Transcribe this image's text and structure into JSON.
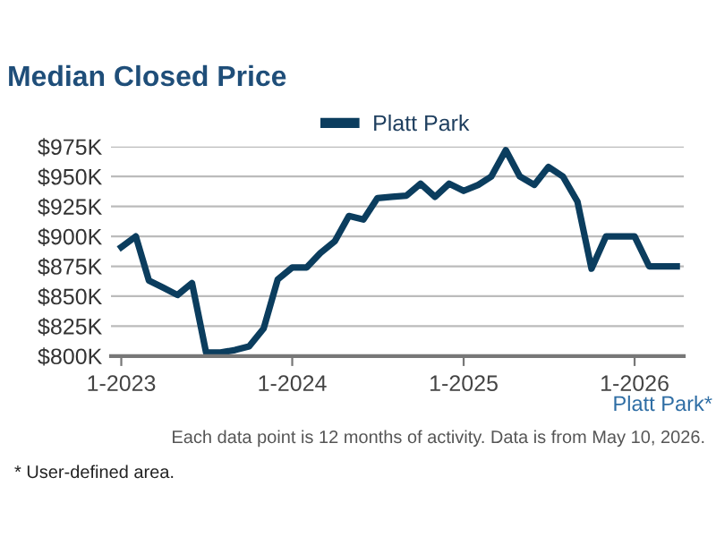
{
  "chart_data": {
    "type": "line",
    "title": "Median Closed Price",
    "x": [
      "2023-01",
      "2023-02",
      "2023-03",
      "2023-04",
      "2023-05",
      "2023-06",
      "2023-07",
      "2023-08",
      "2023-09",
      "2023-10",
      "2023-11",
      "2023-12",
      "2024-01",
      "2024-02",
      "2024-03",
      "2024-04",
      "2024-05",
      "2024-06",
      "2024-07",
      "2024-08",
      "2024-09",
      "2024-10",
      "2024-11",
      "2024-12",
      "2025-01",
      "2025-02",
      "2025-03",
      "2025-04",
      "2025-05",
      "2025-06",
      "2025-07",
      "2025-08",
      "2025-09",
      "2025-10",
      "2025-11",
      "2025-12",
      "2026-01",
      "2026-02",
      "2026-03",
      "2026-04"
    ],
    "series": [
      {
        "name": "Platt Park",
        "color": "#0b3d5e",
        "values": [
          891,
          900,
          863,
          857,
          851,
          861,
          803,
          803,
          805,
          808,
          823,
          864,
          874,
          874,
          886,
          896,
          917,
          914,
          932,
          933,
          934,
          944,
          933,
          944,
          938,
          943,
          950,
          972,
          950,
          943,
          958,
          950,
          929,
          873,
          900,
          900,
          900,
          875,
          875,
          875
        ]
      }
    ],
    "xlim": [
      "2022-12-10",
      "2026-04-16"
    ],
    "xticks": [
      {
        "value": "2023-01",
        "label": "1-2023"
      },
      {
        "value": "2024-01",
        "label": "1-2024"
      },
      {
        "value": "2025-01",
        "label": "1-2025"
      },
      {
        "value": "2026-01",
        "label": "1-2026"
      }
    ],
    "ylim": [
      800,
      975
    ],
    "yticks": [
      {
        "value": 800,
        "label": "$800K"
      },
      {
        "value": 825,
        "label": "$825K"
      },
      {
        "value": 850,
        "label": "$850K"
      },
      {
        "value": 875,
        "label": "$875K"
      },
      {
        "value": 900,
        "label": "$900K"
      },
      {
        "value": 925,
        "label": "$925K"
      },
      {
        "value": 950,
        "label": "$950K"
      },
      {
        "value": 975,
        "label": "$975K"
      }
    ],
    "grid": "y",
    "legend": "top",
    "marker": "none",
    "line_style": "solid",
    "annotations": [
      "Platt Park*",
      "Each data point is 12 months of activity. Data is from May 10, 2026.",
      "* User-defined area."
    ]
  }
}
